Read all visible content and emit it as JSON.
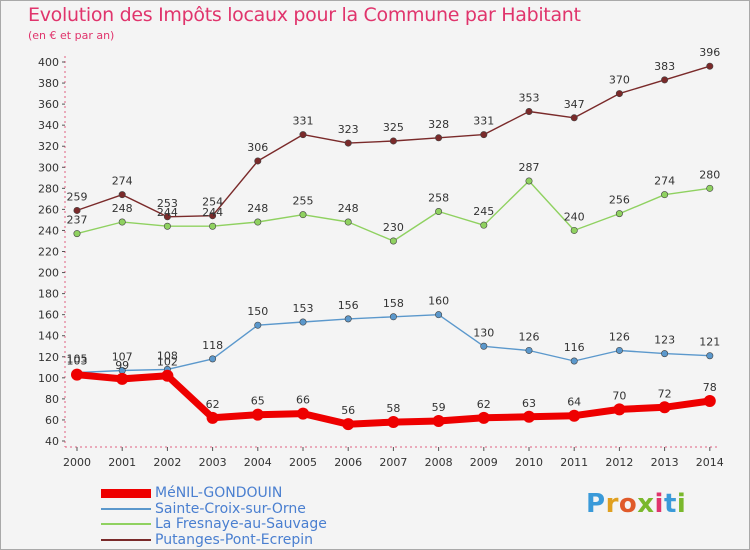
{
  "title": "Evolution des Impôts locaux pour la Commune par Habitant",
  "subtitle": "(en € et par an)",
  "logo": {
    "text": "Proxiti",
    "colors": [
      "#3a9ad9",
      "#e0a020",
      "#e05a2a",
      "#7ab82c",
      "#e0346c",
      "#3a9ad9",
      "#7ab82c"
    ]
  },
  "chart_data": {
    "type": "line",
    "title": "Evolution des Impôts locaux pour la Commune par Habitant",
    "subtitle": "(en € et par an)",
    "x": [
      "2000",
      "2001",
      "2002",
      "2003",
      "2004",
      "2005",
      "2006",
      "2007",
      "2008",
      "2009",
      "2010",
      "2011",
      "2012",
      "2013",
      "2014"
    ],
    "ylim": [
      40,
      400
    ],
    "yticks": [
      40,
      60,
      80,
      100,
      120,
      140,
      160,
      180,
      200,
      220,
      240,
      260,
      280,
      300,
      320,
      340,
      360,
      380,
      400
    ],
    "grid": false,
    "legend_position": "bottom-left",
    "series": [
      {
        "name": "MéNIL-GONDOUIN",
        "color": "#ee0000",
        "values": [
          103,
          99,
          102,
          62,
          65,
          66,
          56,
          58,
          59,
          62,
          63,
          64,
          70,
          72,
          78
        ],
        "labels": [
          "103",
          "99",
          "102",
          "62",
          "65",
          "66",
          "56",
          "58",
          "59",
          "62",
          "63",
          "64",
          "70",
          "72",
          "78"
        ]
      },
      {
        "name": "Sainte-Croix-sur-Orne",
        "color": "#5b98cc",
        "values": [
          105,
          107,
          108,
          118,
          150,
          153,
          156,
          158,
          160,
          130,
          126,
          116,
          126,
          123,
          121
        ],
        "labels": [
          "105",
          "107",
          "108",
          "118",
          "150",
          "153",
          "156",
          "158",
          "160",
          "130",
          "126",
          "116",
          "126",
          "123",
          "121"
        ]
      },
      {
        "name": "La Fresnaye-au-Sauvage",
        "color": "#8fd160",
        "values": [
          237,
          248,
          244,
          244,
          248,
          255,
          248,
          230,
          258,
          245,
          287,
          240,
          256,
          274,
          280
        ],
        "labels": [
          "237",
          "248",
          "244",
          "244",
          "248",
          "255",
          "248",
          "230",
          "258",
          "245",
          "287",
          "240",
          "256",
          "274",
          "280"
        ]
      },
      {
        "name": "Putanges-Pont-Ecrepin",
        "color": "#7a2a2a",
        "values": [
          259,
          274,
          253,
          254,
          306,
          331,
          323,
          325,
          328,
          331,
          353,
          347,
          370,
          383,
          396
        ],
        "labels": [
          "259",
          "274",
          "253",
          "254",
          "306",
          "331",
          "323",
          "325",
          "328",
          "331",
          "353",
          "347",
          "370",
          "383",
          "396"
        ]
      }
    ]
  }
}
